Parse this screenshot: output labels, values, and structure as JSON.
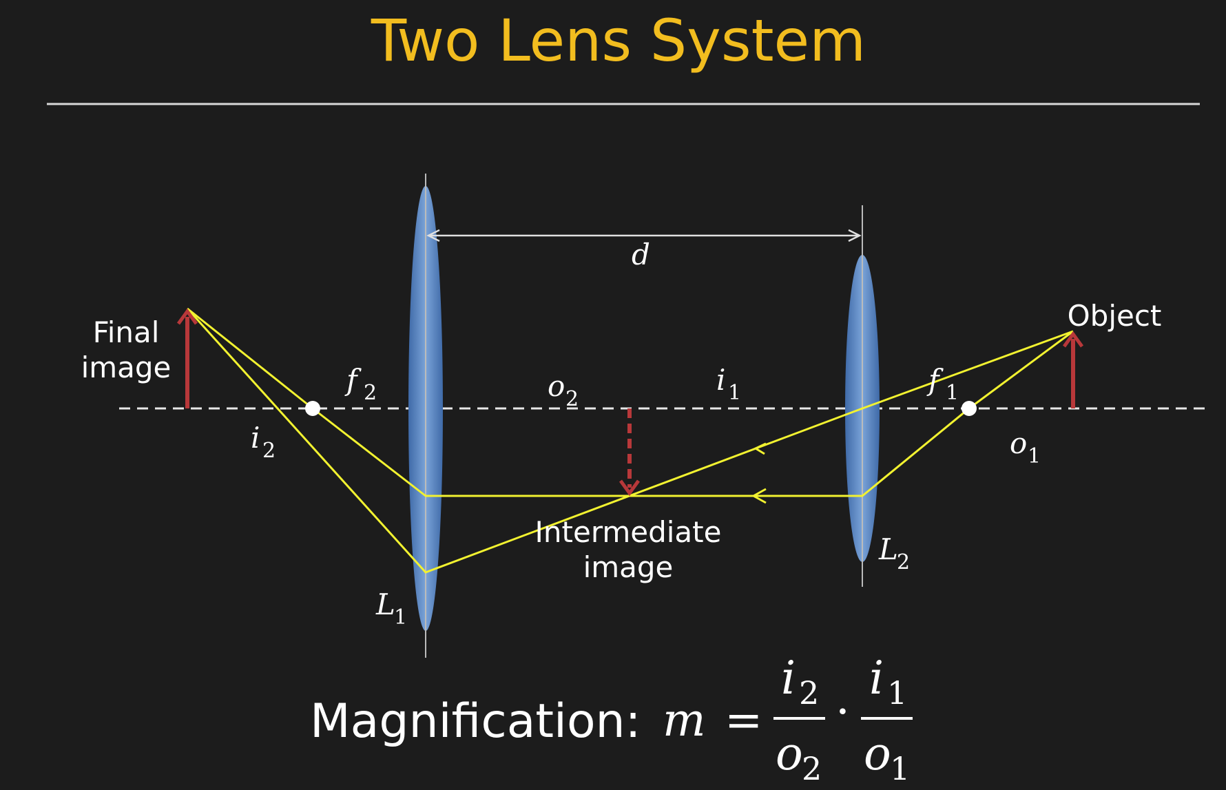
{
  "slide": {
    "title": "Two Lens System"
  },
  "labels": {
    "final_image_line1": "Final",
    "final_image_line2": "image",
    "object": "Object",
    "intermediate_line1": "Intermediate",
    "intermediate_line2": "image"
  },
  "symbols": {
    "d": "d",
    "f2": {
      "base": "f",
      "sub": "2"
    },
    "o2": {
      "base": "o",
      "sub": "2"
    },
    "i1": {
      "base": "i",
      "sub": "1"
    },
    "f1": {
      "base": "f",
      "sub": "1"
    },
    "i2": {
      "base": "i",
      "sub": "2"
    },
    "o1": {
      "base": "o",
      "sub": "1"
    },
    "L1": {
      "base": "L",
      "sub": "1"
    },
    "L2": {
      "base": "L",
      "sub": "2"
    }
  },
  "equation": {
    "label": "Magnification:",
    "lhs": "m",
    "equals": "=",
    "frac1": {
      "num_base": "i",
      "num_sub": "2",
      "den_base": "o",
      "den_sub": "2"
    },
    "dot": "·",
    "frac2": {
      "num_base": "i",
      "num_sub": "1",
      "den_base": "o",
      "den_sub": "1"
    }
  },
  "colors": {
    "background": "#1c1c1c",
    "title": "#f2bd1f",
    "ray": "#f2f230",
    "arrow": "#b8383a",
    "lens": "#5b86c2",
    "axis": "#e8e8e8"
  }
}
